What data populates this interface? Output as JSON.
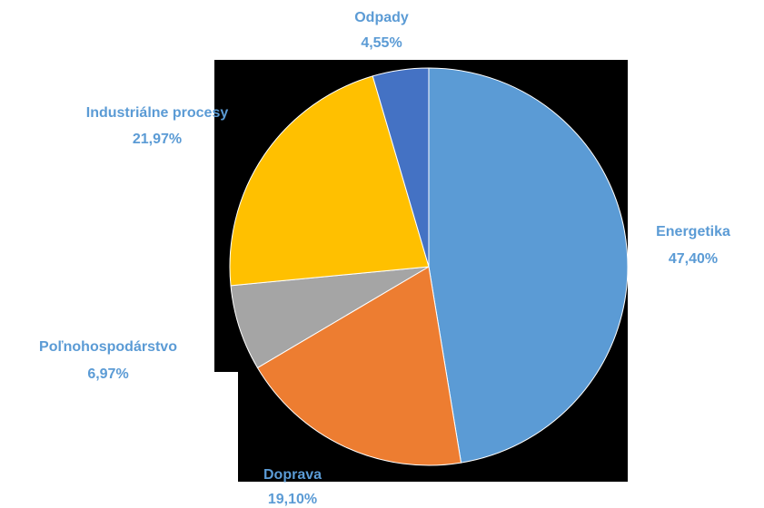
{
  "chart_data": {
    "type": "pie",
    "slices": [
      {
        "label": "Energetika",
        "value_text": "47,40%",
        "value": 47.4,
        "color": "#5b9bd5"
      },
      {
        "label": "Doprava",
        "value_text": "19,10%",
        "value": 19.1,
        "color": "#ed7d31"
      },
      {
        "label": "Poľnohospodárstvo",
        "value_text": "6,97%",
        "value": 6.97,
        "color": "#a5a5a5"
      },
      {
        "label": "Industriálne procesy",
        "value_text": "21,97%",
        "value": 21.97,
        "color": "#ffc000"
      },
      {
        "label": "Odpady",
        "value_text": "4,55%",
        "value": 4.55,
        "color": "#4472c4"
      }
    ],
    "label_color": "#5b9bd5",
    "start_angle_deg": 0,
    "direction": "clockwise",
    "legend": "none"
  }
}
